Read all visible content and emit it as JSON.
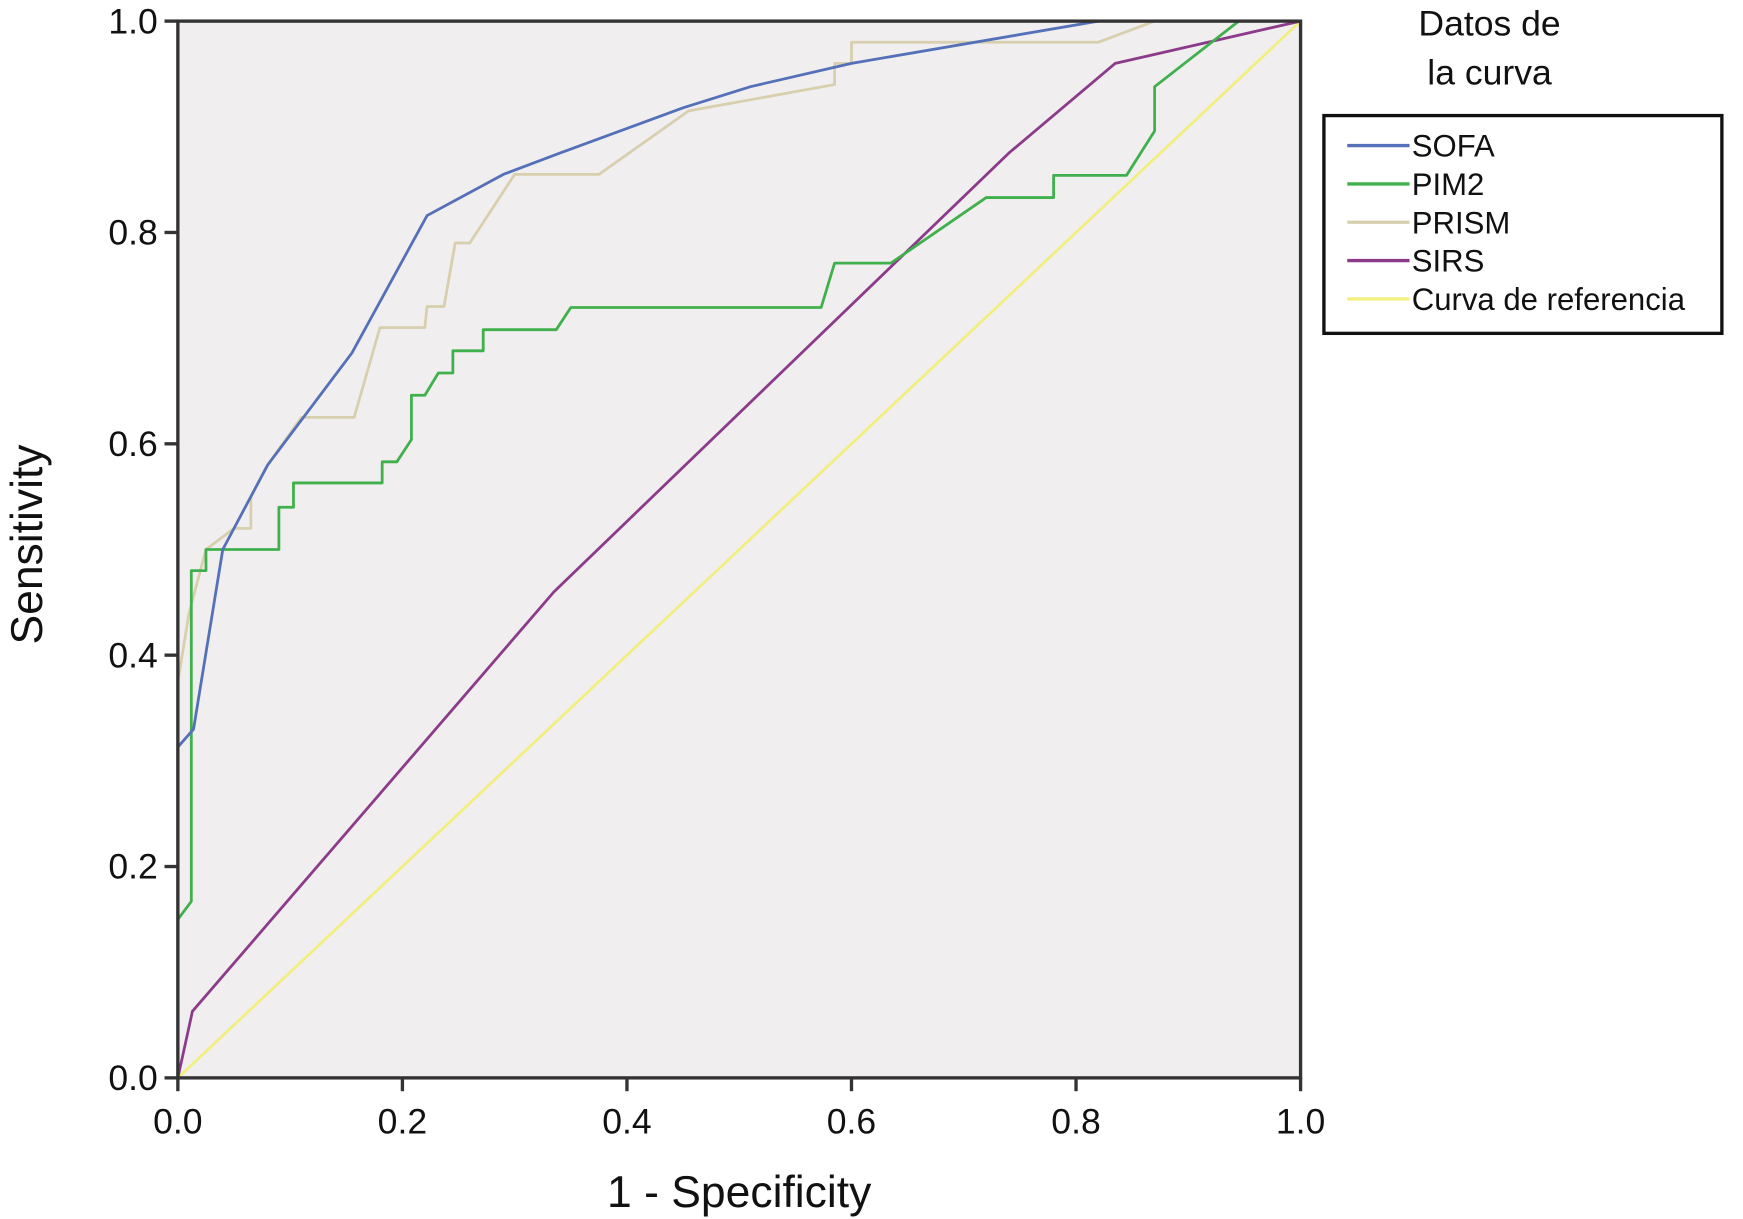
{
  "chart_data": {
    "type": "line",
    "title": "",
    "xlabel": "1 - Specificity",
    "ylabel": "Sensitivity",
    "xlim": [
      0,
      1
    ],
    "ylim": [
      0,
      1
    ],
    "x_ticks": [
      "0.0",
      "0.2",
      "0.4",
      "0.6",
      "0.8",
      "1.0"
    ],
    "y_ticks": [
      "0.0",
      "0.2",
      "0.4",
      "0.6",
      "0.8",
      "1.0"
    ],
    "grid": false,
    "plot_background": "#f0eeee",
    "legend": {
      "title_lines": [
        "Datos de",
        "la curva"
      ],
      "placement": "right"
    },
    "series": [
      {
        "name": "SOFA",
        "color": "#5470b8",
        "points": [
          [
            0,
            0
          ],
          [
            0,
            0.313
          ],
          [
            0.014,
            0.33
          ],
          [
            0.04,
            0.5
          ],
          [
            0.08,
            0.58
          ],
          [
            0.155,
            0.686
          ],
          [
            0.222,
            0.816
          ],
          [
            0.29,
            0.855
          ],
          [
            0.34,
            0.875
          ],
          [
            0.45,
            0.918
          ],
          [
            0.51,
            0.938
          ],
          [
            0.6,
            0.96
          ],
          [
            0.82,
            1.0
          ],
          [
            1,
            1
          ]
        ]
      },
      {
        "name": "PIM2",
        "color": "#40b04c",
        "points": [
          [
            0,
            0
          ],
          [
            0,
            0.15
          ],
          [
            0.012,
            0.167
          ],
          [
            0.012,
            0.48
          ],
          [
            0.025,
            0.48
          ],
          [
            0.025,
            0.5
          ],
          [
            0.09,
            0.5
          ],
          [
            0.09,
            0.54
          ],
          [
            0.103,
            0.54
          ],
          [
            0.103,
            0.563
          ],
          [
            0.182,
            0.563
          ],
          [
            0.182,
            0.583
          ],
          [
            0.195,
            0.583
          ],
          [
            0.208,
            0.604
          ],
          [
            0.208,
            0.646
          ],
          [
            0.22,
            0.646
          ],
          [
            0.232,
            0.667
          ],
          [
            0.245,
            0.667
          ],
          [
            0.245,
            0.688
          ],
          [
            0.272,
            0.688
          ],
          [
            0.272,
            0.708
          ],
          [
            0.337,
            0.708
          ],
          [
            0.35,
            0.729
          ],
          [
            0.573,
            0.729
          ],
          [
            0.585,
            0.771
          ],
          [
            0.635,
            0.771
          ],
          [
            0.72,
            0.833
          ],
          [
            0.78,
            0.833
          ],
          [
            0.78,
            0.854
          ],
          [
            0.845,
            0.854
          ],
          [
            0.87,
            0.896
          ],
          [
            0.87,
            0.938
          ],
          [
            0.945,
            1.0
          ],
          [
            1,
            1
          ]
        ]
      },
      {
        "name": "PRISM",
        "color": "#d8cfae",
        "points": [
          [
            0,
            0
          ],
          [
            0,
            0.375
          ],
          [
            0.01,
            0.44
          ],
          [
            0.02,
            0.48
          ],
          [
            0.025,
            0.5
          ],
          [
            0.05,
            0.52
          ],
          [
            0.065,
            0.52
          ],
          [
            0.065,
            0.55
          ],
          [
            0.08,
            0.58
          ],
          [
            0.11,
            0.625
          ],
          [
            0.157,
            0.625
          ],
          [
            0.18,
            0.71
          ],
          [
            0.22,
            0.71
          ],
          [
            0.222,
            0.73
          ],
          [
            0.237,
            0.73
          ],
          [
            0.247,
            0.79
          ],
          [
            0.26,
            0.79
          ],
          [
            0.3,
            0.855
          ],
          [
            0.375,
            0.855
          ],
          [
            0.455,
            0.915
          ],
          [
            0.585,
            0.94
          ],
          [
            0.585,
            0.96
          ],
          [
            0.6,
            0.96
          ],
          [
            0.6,
            0.98
          ],
          [
            0.82,
            0.98
          ],
          [
            0.87,
            1.0
          ],
          [
            1,
            1
          ]
        ]
      },
      {
        "name": "SIRS",
        "color": "#8c3a8a",
        "points": [
          [
            0,
            0
          ],
          [
            0.013,
            0.063
          ],
          [
            0.335,
            0.46
          ],
          [
            0.74,
            0.875
          ],
          [
            0.835,
            0.96
          ],
          [
            1,
            1
          ]
        ]
      },
      {
        "name": "Curva de referencia",
        "color": "#f2ef80",
        "points": [
          [
            0,
            0
          ],
          [
            1,
            1
          ]
        ]
      }
    ]
  }
}
